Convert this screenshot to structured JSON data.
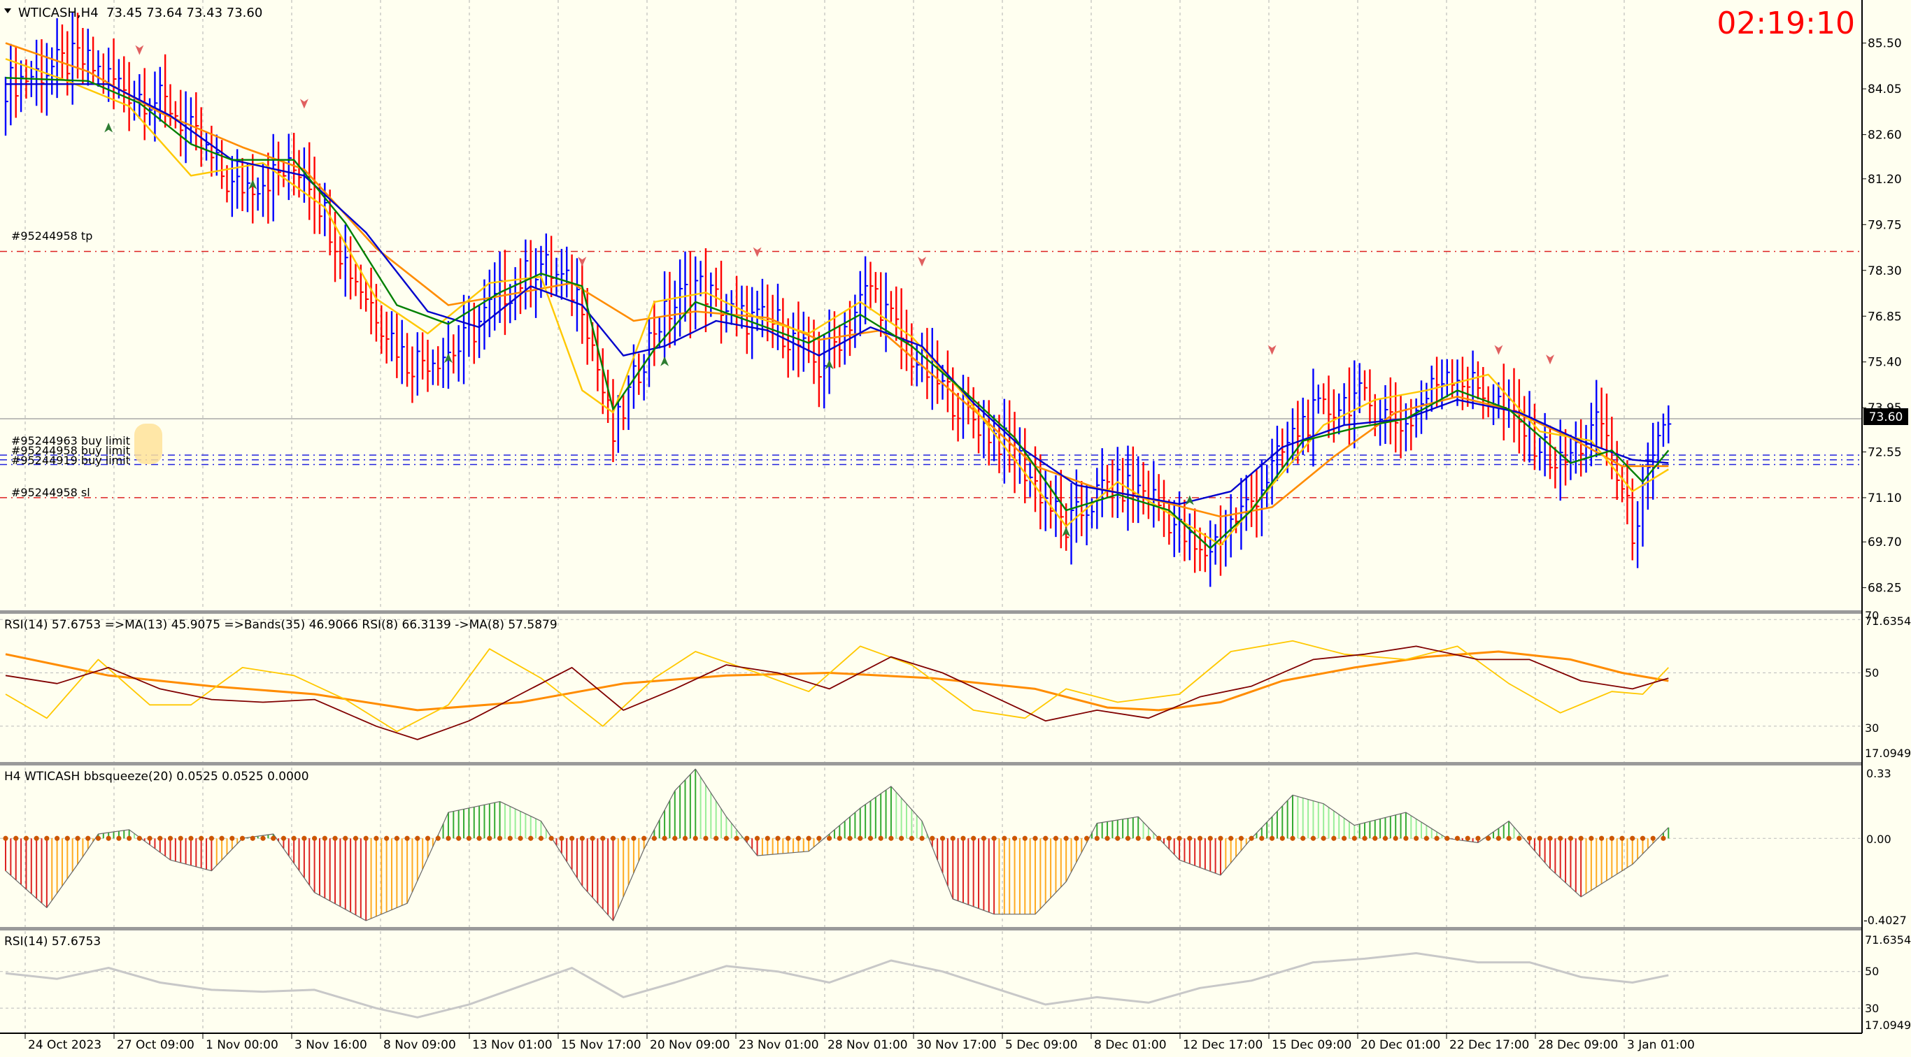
{
  "header": {
    "symbol_label": "WTICASH,H4",
    "ohlc": "73.45 73.64 73.43 73.60",
    "timer": "02:19:10"
  },
  "colors": {
    "background": "#fffff0",
    "bull_bar": "#0000ff",
    "bear_bar": "#ff0000",
    "ma_fast": "#008000",
    "ma_mid": "#0000cc",
    "ma_yellow": "#ffc800",
    "ma_slow": "#ff8c00",
    "rsi_line": "#800000",
    "squeeze_pos": "#2e8b2e",
    "squeeze_neg": "#dd3333",
    "squeeze_dot": "#cc5500",
    "timer": "#ff0000",
    "price_label_bg": "#000000"
  },
  "price_axis": {
    "ticks": [
      "85.50",
      "84.05",
      "82.60",
      "81.20",
      "79.75",
      "78.30",
      "76.85",
      "75.40",
      "73.95",
      "72.55",
      "71.10",
      "69.70",
      "68.25"
    ],
    "current_price_label": "73.60"
  },
  "order_lines": {
    "tp_label": "#95244958 tp",
    "sl_label": "#95244958 sl",
    "buy_limit_labels": [
      "#95244963 buy limit",
      "#95244958 buy limit",
      "#95244919 buy limit"
    ]
  },
  "rsi_panel": {
    "title": "RSI(14) 57.6753   =>MA(13) 45.9075   =>Bands(35) 46.9066   RSI(8) 66.3139   ->MA(8) 57.5879",
    "axis_labels": [
      "71.6354",
      "70",
      "50",
      "30",
      "17.0949"
    ]
  },
  "squeeze_panel": {
    "title": "H4 WTICASH bbsqueeze(20) 0.0525 0.0525 0.0000",
    "axis_labels": [
      "0.33",
      "0.00",
      "-0.4027"
    ]
  },
  "rsi2_panel": {
    "title": "RSI(14) 57.6753",
    "axis_labels": [
      "71.6354",
      "50",
      "30",
      "17.0949"
    ]
  },
  "time_axis": {
    "labels": [
      "24 Oct 2023",
      "27 Oct 09:00",
      "1 Nov 00:00",
      "3 Nov 16:00",
      "8 Nov 09:00",
      "13 Nov 01:00",
      "15 Nov 17:00",
      "20 Nov 09:00",
      "23 Nov 01:00",
      "28 Nov 01:00",
      "30 Nov 17:00",
      "5 Dec 09:00",
      "8 Dec 01:00",
      "12 Dec 17:00",
      "15 Dec 09:00",
      "20 Dec 01:00",
      "22 Dec 17:00",
      "28 Dec 09:00",
      "3 Jan 01:00"
    ]
  },
  "chart_data": {
    "type": "candlestick",
    "symbol": "WTICASH",
    "timeframe": "H4",
    "current_price": 73.6,
    "ylim": [
      67.6,
      86.2
    ],
    "levels": {
      "tp": 78.9,
      "sl": 71.1,
      "buy_limits": [
        72.45,
        72.3,
        72.15
      ]
    },
    "price_path": [
      [
        0,
        84.2
      ],
      [
        14,
        85.0
      ],
      [
        24,
        84.0
      ],
      [
        32,
        83.5
      ],
      [
        44,
        80.9
      ],
      [
        58,
        81.6
      ],
      [
        66,
        78.6
      ],
      [
        78,
        75.4
      ],
      [
        88,
        75.8
      ],
      [
        96,
        77.5
      ],
      [
        104,
        78.5
      ],
      [
        112,
        77.4
      ],
      [
        118,
        73.0
      ],
      [
        126,
        76.5
      ],
      [
        134,
        77.9
      ],
      [
        142,
        76.8
      ],
      [
        150,
        76.6
      ],
      [
        158,
        75.2
      ],
      [
        168,
        77.8
      ],
      [
        176,
        75.6
      ],
      [
        186,
        73.9
      ],
      [
        196,
        72.5
      ],
      [
        206,
        70.1
      ],
      [
        214,
        71.5
      ],
      [
        222,
        71.3
      ],
      [
        232,
        69.2
      ],
      [
        242,
        71.0
      ],
      [
        252,
        73.5
      ],
      [
        262,
        74.3
      ],
      [
        272,
        73.4
      ],
      [
        280,
        75.2
      ],
      [
        290,
        74.1
      ],
      [
        302,
        72.1
      ],
      [
        310,
        73.5
      ],
      [
        316,
        70.1
      ],
      [
        323,
        73.6
      ]
    ],
    "ma_fast": [
      [
        0,
        84.4
      ],
      [
        16,
        84.3
      ],
      [
        26,
        83.6
      ],
      [
        36,
        82.3
      ],
      [
        44,
        81.8
      ],
      [
        56,
        81.8
      ],
      [
        66,
        79.8
      ],
      [
        76,
        77.2
      ],
      [
        86,
        76.6
      ],
      [
        96,
        77.6
      ],
      [
        104,
        78.2
      ],
      [
        112,
        77.8
      ],
      [
        118,
        73.9
      ],
      [
        126,
        75.8
      ],
      [
        134,
        77.3
      ],
      [
        146,
        76.6
      ],
      [
        156,
        76.0
      ],
      [
        166,
        76.9
      ],
      [
        176,
        75.9
      ],
      [
        186,
        74.5
      ],
      [
        196,
        73.0
      ],
      [
        206,
        70.7
      ],
      [
        216,
        71.2
      ],
      [
        226,
        70.7
      ],
      [
        234,
        69.5
      ],
      [
        242,
        70.7
      ],
      [
        252,
        72.9
      ],
      [
        262,
        73.3
      ],
      [
        272,
        73.6
      ],
      [
        282,
        74.5
      ],
      [
        292,
        73.9
      ],
      [
        304,
        72.2
      ],
      [
        312,
        72.6
      ],
      [
        318,
        71.6
      ],
      [
        323,
        72.6
      ]
    ],
    "ma_mid": [
      [
        0,
        84.2
      ],
      [
        20,
        84.2
      ],
      [
        32,
        83.2
      ],
      [
        44,
        81.8
      ],
      [
        58,
        81.3
      ],
      [
        70,
        79.5
      ],
      [
        82,
        77.0
      ],
      [
        92,
        76.5
      ],
      [
        102,
        77.8
      ],
      [
        112,
        77.2
      ],
      [
        120,
        75.6
      ],
      [
        128,
        75.9
      ],
      [
        138,
        76.7
      ],
      [
        148,
        76.4
      ],
      [
        158,
        75.6
      ],
      [
        168,
        76.5
      ],
      [
        178,
        75.9
      ],
      [
        188,
        74.1
      ],
      [
        198,
        72.6
      ],
      [
        208,
        71.5
      ],
      [
        218,
        71.2
      ],
      [
        228,
        70.9
      ],
      [
        238,
        71.3
      ],
      [
        248,
        72.7
      ],
      [
        260,
        73.4
      ],
      [
        272,
        73.6
      ],
      [
        282,
        74.2
      ],
      [
        294,
        73.8
      ],
      [
        306,
        72.9
      ],
      [
        316,
        72.3
      ],
      [
        323,
        72.2
      ]
    ],
    "ma_yellow": [
      [
        0,
        85.0
      ],
      [
        12,
        84.3
      ],
      [
        24,
        83.5
      ],
      [
        36,
        81.3
      ],
      [
        50,
        81.7
      ],
      [
        62,
        80.3
      ],
      [
        72,
        77.4
      ],
      [
        82,
        76.3
      ],
      [
        94,
        77.9
      ],
      [
        104,
        78.1
      ],
      [
        112,
        74.5
      ],
      [
        118,
        73.8
      ],
      [
        126,
        77.3
      ],
      [
        136,
        77.6
      ],
      [
        146,
        76.8
      ],
      [
        156,
        76.3
      ],
      [
        166,
        77.3
      ],
      [
        176,
        76.2
      ],
      [
        186,
        74.4
      ],
      [
        196,
        72.3
      ],
      [
        206,
        70.2
      ],
      [
        216,
        71.6
      ],
      [
        226,
        70.6
      ],
      [
        236,
        69.6
      ],
      [
        246,
        71.5
      ],
      [
        256,
        73.4
      ],
      [
        266,
        74.2
      ],
      [
        276,
        74.5
      ],
      [
        288,
        75.0
      ],
      [
        298,
        73.2
      ],
      [
        308,
        72.9
      ],
      [
        316,
        71.3
      ],
      [
        323,
        72.0
      ]
    ],
    "ma_slow": [
      [
        0,
        85.5
      ],
      [
        16,
        84.6
      ],
      [
        30,
        83.3
      ],
      [
        46,
        82.2
      ],
      [
        58,
        81.5
      ],
      [
        72,
        79.0
      ],
      [
        86,
        77.2
      ],
      [
        100,
        77.6
      ],
      [
        110,
        77.9
      ],
      [
        122,
        76.7
      ],
      [
        134,
        77.0
      ],
      [
        148,
        76.8
      ],
      [
        158,
        76.1
      ],
      [
        170,
        76.4
      ],
      [
        180,
        75.0
      ],
      [
        190,
        73.6
      ],
      [
        200,
        72.1
      ],
      [
        212,
        71.4
      ],
      [
        224,
        71.0
      ],
      [
        236,
        70.5
      ],
      [
        246,
        70.8
      ],
      [
        258,
        72.4
      ],
      [
        270,
        73.8
      ],
      [
        282,
        74.3
      ],
      [
        292,
        73.9
      ],
      [
        304,
        73.0
      ],
      [
        314,
        72.1
      ],
      [
        323,
        72.1
      ]
    ],
    "rsi_main": [
      [
        0,
        49
      ],
      [
        10,
        46
      ],
      [
        20,
        52
      ],
      [
        30,
        44
      ],
      [
        40,
        40
      ],
      [
        50,
        39
      ],
      [
        60,
        40
      ],
      [
        72,
        30
      ],
      [
        80,
        25
      ],
      [
        90,
        32
      ],
      [
        100,
        42
      ],
      [
        110,
        52
      ],
      [
        120,
        36
      ],
      [
        130,
        44
      ],
      [
        140,
        53
      ],
      [
        150,
        50
      ],
      [
        160,
        44
      ],
      [
        172,
        56
      ],
      [
        182,
        50
      ],
      [
        192,
        41
      ],
      [
        202,
        32
      ],
      [
        212,
        36
      ],
      [
        222,
        33
      ],
      [
        232,
        41
      ],
      [
        242,
        45
      ],
      [
        254,
        55
      ],
      [
        264,
        57
      ],
      [
        274,
        60
      ],
      [
        286,
        55
      ],
      [
        296,
        55
      ],
      [
        306,
        47
      ],
      [
        316,
        44
      ],
      [
        323,
        48
      ]
    ],
    "rsi_fast": [
      [
        0,
        42
      ],
      [
        8,
        33
      ],
      [
        18,
        55
      ],
      [
        28,
        38
      ],
      [
        36,
        38
      ],
      [
        46,
        52
      ],
      [
        56,
        49
      ],
      [
        66,
        40
      ],
      [
        76,
        28
      ],
      [
        86,
        38
      ],
      [
        94,
        59
      ],
      [
        104,
        48
      ],
      [
        116,
        30
      ],
      [
        126,
        48
      ],
      [
        134,
        58
      ],
      [
        146,
        50
      ],
      [
        156,
        43
      ],
      [
        166,
        60
      ],
      [
        176,
        53
      ],
      [
        188,
        36
      ],
      [
        198,
        33
      ],
      [
        206,
        44
      ],
      [
        216,
        39
      ],
      [
        228,
        42
      ],
      [
        238,
        58
      ],
      [
        250,
        62
      ],
      [
        260,
        57
      ],
      [
        272,
        55
      ],
      [
        282,
        60
      ],
      [
        292,
        46
      ],
      [
        302,
        35
      ],
      [
        312,
        43
      ],
      [
        318,
        42
      ],
      [
        323,
        52
      ]
    ],
    "rsi_bands": [
      [
        0,
        57
      ],
      [
        20,
        49
      ],
      [
        40,
        45
      ],
      [
        60,
        42
      ],
      [
        80,
        36
      ],
      [
        100,
        39
      ],
      [
        120,
        46
      ],
      [
        140,
        49
      ],
      [
        160,
        50
      ],
      [
        180,
        48
      ],
      [
        200,
        44
      ],
      [
        214,
        37
      ],
      [
        224,
        36
      ],
      [
        236,
        39
      ],
      [
        248,
        47
      ],
      [
        262,
        52
      ],
      [
        276,
        56
      ],
      [
        290,
        58
      ],
      [
        304,
        55
      ],
      [
        314,
        50
      ],
      [
        323,
        47
      ]
    ],
    "squeeze": [
      [
        0,
        -0.15
      ],
      [
        8,
        -0.32
      ],
      [
        14,
        -0.12
      ],
      [
        18,
        0.02
      ],
      [
        24,
        0.04
      ],
      [
        32,
        -0.1
      ],
      [
        40,
        -0.15
      ],
      [
        46,
        0.0
      ],
      [
        52,
        0.02
      ],
      [
        60,
        -0.25
      ],
      [
        70,
        -0.38
      ],
      [
        78,
        -0.3
      ],
      [
        86,
        0.12
      ],
      [
        96,
        0.17
      ],
      [
        104,
        0.08
      ],
      [
        112,
        -0.22
      ],
      [
        118,
        -0.38
      ],
      [
        124,
        -0.05
      ],
      [
        130,
        0.22
      ],
      [
        134,
        0.32
      ],
      [
        140,
        0.1
      ],
      [
        146,
        -0.08
      ],
      [
        156,
        -0.06
      ],
      [
        166,
        0.14
      ],
      [
        172,
        0.24
      ],
      [
        178,
        0.08
      ],
      [
        184,
        -0.28
      ],
      [
        192,
        -0.35
      ],
      [
        200,
        -0.35
      ],
      [
        206,
        -0.2
      ],
      [
        212,
        0.07
      ],
      [
        220,
        0.1
      ],
      [
        228,
        -0.1
      ],
      [
        236,
        -0.17
      ],
      [
        242,
        0.0
      ],
      [
        250,
        0.2
      ],
      [
        256,
        0.16
      ],
      [
        262,
        0.06
      ],
      [
        272,
        0.12
      ],
      [
        280,
        0.0
      ],
      [
        286,
        -0.02
      ],
      [
        292,
        0.08
      ],
      [
        300,
        -0.14
      ],
      [
        306,
        -0.27
      ],
      [
        316,
        -0.12
      ],
      [
        323,
        0.05
      ]
    ]
  }
}
